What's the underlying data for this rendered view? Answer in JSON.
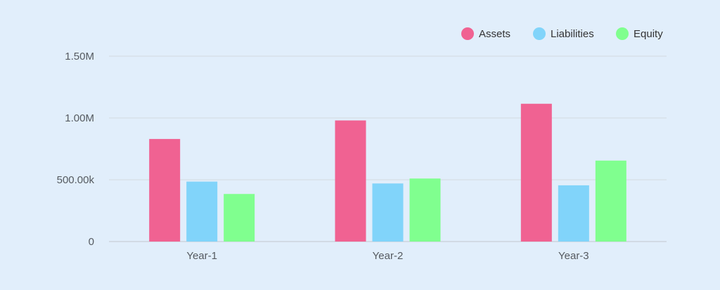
{
  "chart_data": {
    "type": "bar",
    "title": "",
    "xlabel": "",
    "ylabel": "",
    "categories": [
      "Year-1",
      "Year-2",
      "Year-3"
    ],
    "series": [
      {
        "name": "Assets",
        "color": "#f06292",
        "values": [
          830000,
          980000,
          1115000
        ]
      },
      {
        "name": "Liabilities",
        "color": "#81d4fa",
        "values": [
          485000,
          470000,
          455000
        ]
      },
      {
        "name": "Equity",
        "color": "#80ff8f",
        "values": [
          385000,
          510000,
          655000
        ]
      }
    ],
    "ylim": [
      0,
      1500000
    ],
    "y_ticks": [
      0,
      500000,
      1000000,
      1500000
    ],
    "y_tick_labels": [
      "0",
      "500.00k",
      "1.00M",
      "1.50M"
    ],
    "grid": true,
    "legend_position": "top-right",
    "background_color": "#e1eefb"
  }
}
